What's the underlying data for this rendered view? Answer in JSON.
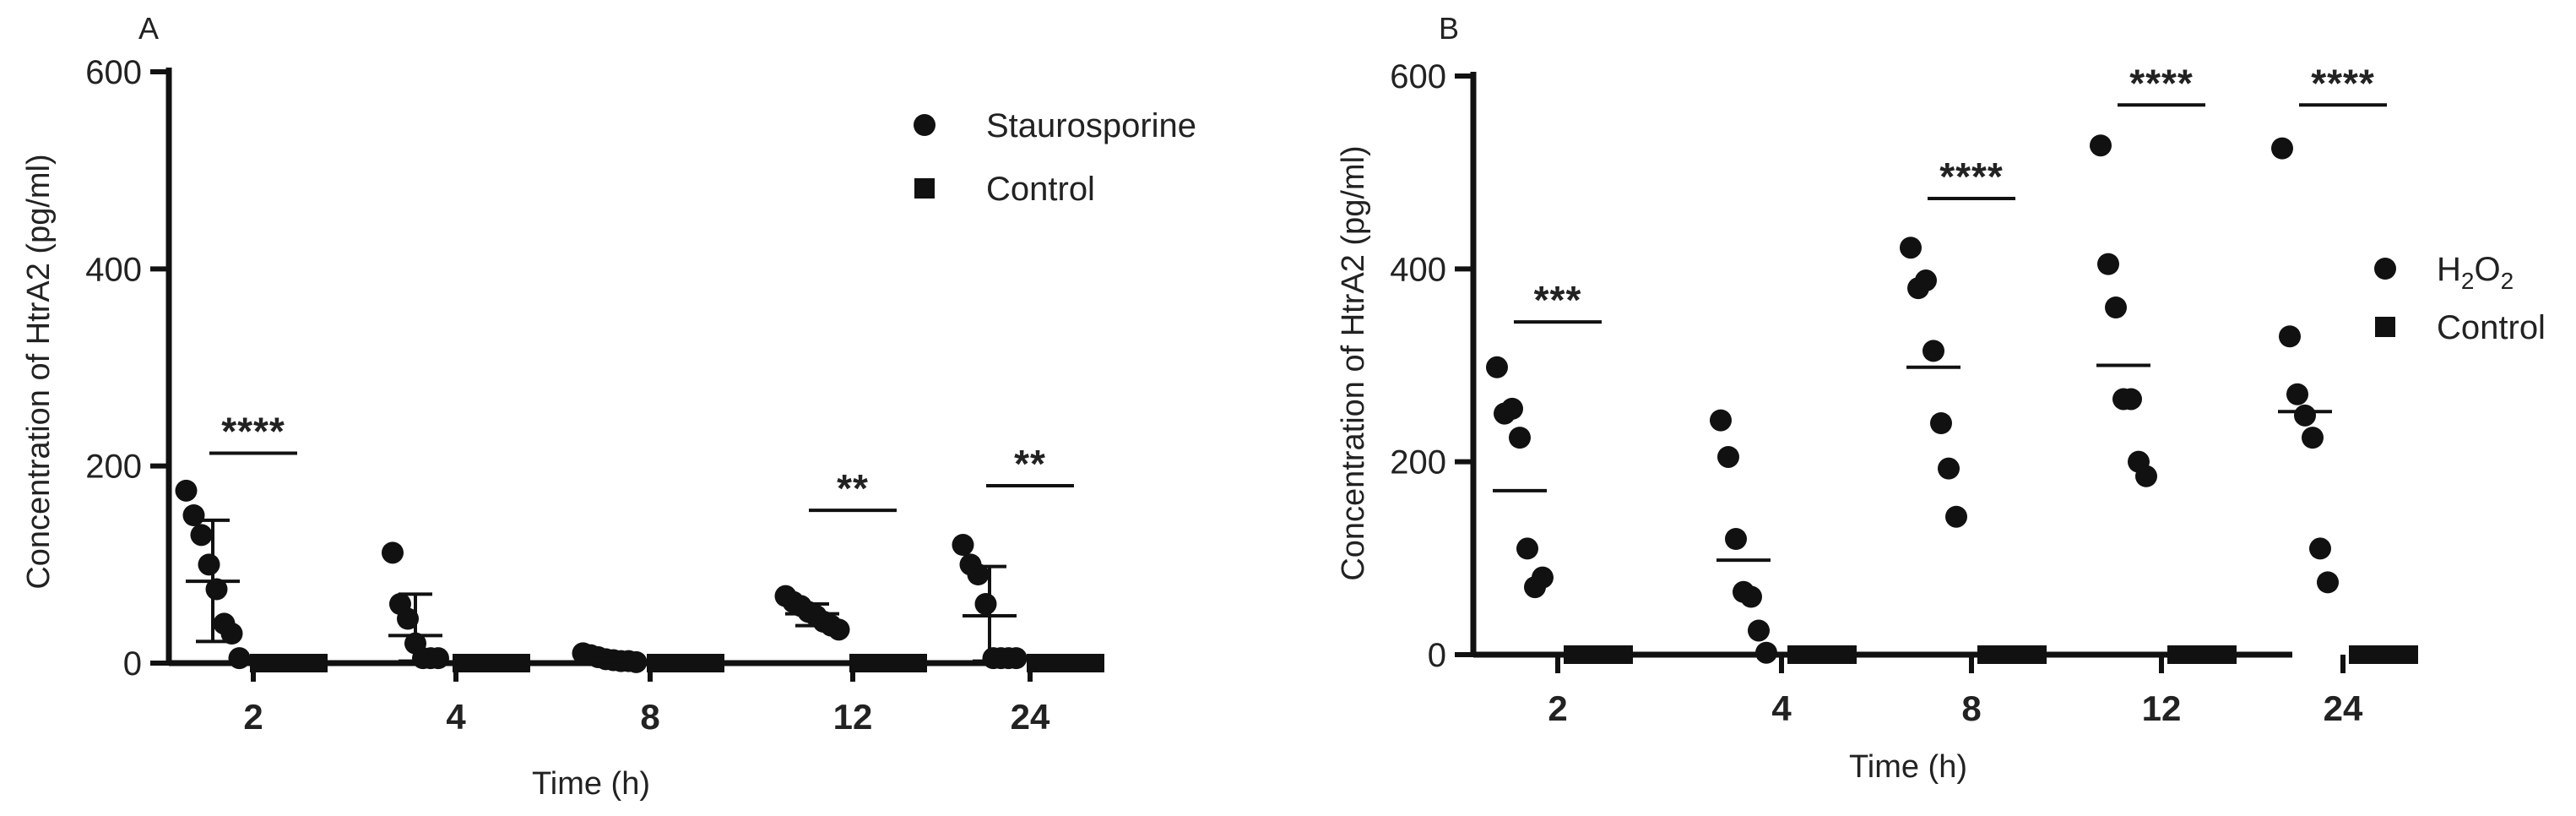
{
  "panels": [
    {
      "panel_label": "A",
      "chart_data": {
        "type": "scatter",
        "categories": [
          "2",
          "4",
          "8",
          "12",
          "24"
        ],
        "xlabel": "Time (h)",
        "ylabel": "Concentration of HtrA2  (pg/ml)",
        "ylim": [
          0,
          600
        ],
        "yticks": [
          "0",
          "200",
          "400",
          "600"
        ],
        "grid": false,
        "legend_position": "top-right",
        "error_bars": true,
        "series": [
          {
            "name": "Staurosporine",
            "marker": "circle",
            "points": [
              [
                175,
                150,
                130,
                100,
                75,
                40,
                30,
                5
              ],
              [
                112,
                60,
                45,
                20,
                5,
                5,
                5
              ],
              [
                10,
                8,
                6,
                4,
                3,
                2,
                2,
                1
              ],
              [
                68,
                62,
                58,
                52,
                48,
                42,
                38,
                34
              ],
              [
                120,
                100,
                90,
                60,
                5,
                5,
                5,
                5
              ]
            ],
            "mean": [
              83,
              28,
              4,
              50,
              48
            ],
            "err_low": [
              22,
              2,
              1,
              38,
              2
            ],
            "err_high": [
              145,
              70,
              8,
              60,
              98
            ]
          },
          {
            "name": "Control",
            "marker": "square",
            "points": [
              [
                0,
                0,
                0,
                0,
                0,
                0,
                0,
                0
              ],
              [
                0,
                0,
                0,
                0,
                0,
                0,
                0,
                0
              ],
              [
                0,
                0,
                0,
                0,
                0,
                0,
                0,
                0
              ],
              [
                0,
                0,
                0,
                0,
                0,
                0,
                0,
                0
              ],
              [
                0,
                0,
                0,
                0,
                0,
                0,
                0,
                0
              ]
            ]
          }
        ],
        "significance": [
          {
            "category": "2",
            "label": "****",
            "y": 213
          },
          {
            "category": "12",
            "label": "**",
            "y": 155
          },
          {
            "category": "24",
            "label": "**",
            "y": 180
          }
        ]
      }
    },
    {
      "panel_label": "B",
      "chart_data": {
        "type": "scatter",
        "categories": [
          "2",
          "4",
          "8",
          "12",
          "24"
        ],
        "xlabel": "Time (h)",
        "ylabel": "Concentration of HtrA2  (pg/ml)",
        "ylim": [
          0,
          600
        ],
        "yticks": [
          "0",
          "200",
          "400",
          "600"
        ],
        "grid": false,
        "legend_position": "right",
        "error_bars": false,
        "series": [
          {
            "name": "H2O2",
            "name_parts": {
              "base": "H",
              "sub1": "2",
              "mid": "O",
              "sub2": "2"
            },
            "marker": "circle",
            "points": [
              [
                298,
                250,
                255,
                225,
                110,
                70,
                80
              ],
              [
                243,
                205,
                120,
                65,
                60,
                25,
                2
              ],
              [
                422,
                380,
                388,
                315,
                240,
                193,
                143
              ],
              [
                528,
                405,
                360,
                265,
                265,
                200,
                185
              ],
              [
                525,
                330,
                270,
                248,
                225,
                110,
                75
              ]
            ],
            "mean": [
              170,
              98,
              298,
              300,
              252
            ]
          },
          {
            "name": "Control",
            "marker": "square",
            "points": [
              [
                0,
                0,
                0,
                0,
                0,
                0,
                0
              ],
              [
                0,
                0,
                0,
                0,
                0,
                0,
                0
              ],
              [
                0,
                0,
                0,
                0,
                0,
                0,
                0
              ],
              [
                0,
                0,
                0,
                0,
                0,
                0,
                0
              ],
              [
                0,
                0,
                0,
                0,
                0,
                0,
                0
              ]
            ]
          }
        ],
        "significance": [
          {
            "category": "2",
            "label": "***",
            "y": 345
          },
          {
            "category": "8",
            "label": "****",
            "y": 473
          },
          {
            "category": "12",
            "label": "****",
            "y": 570
          },
          {
            "category": "24",
            "label": "****",
            "y": 570
          }
        ]
      }
    }
  ]
}
